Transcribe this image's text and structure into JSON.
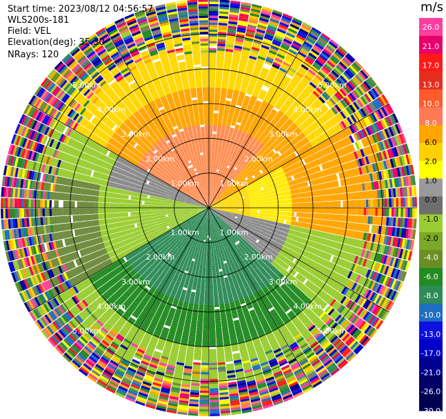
{
  "header": {
    "start_time": "Start time: 2023/08/12 04:56:57",
    "instrument": "WLS200s-181",
    "field": "Field: VEL",
    "elevation": "Elevation(deg): 35.30",
    "nrays": "NRays: 120"
  },
  "range_rings": {
    "labels": [
      "1.00km",
      "2.00km",
      "3.00km",
      "4.00km",
      "5.00km"
    ],
    "ranges_km": [
      1,
      2,
      3,
      4,
      5
    ],
    "max_range_km": 6.0
  },
  "colorbar": {
    "unit": "m/s",
    "tick_labels": [
      "26.0",
      "21.0",
      "17.0",
      "13.0",
      "10.0",
      "8.0",
      "6.0",
      "2.0",
      "1.0",
      "0.0",
      "-1.0",
      "-2.0",
      "-4.0",
      "-6.0",
      "-8.0",
      "-10.0",
      "-13.0",
      "-17.0",
      "-21.0",
      "-26.0",
      "-30.0"
    ],
    "colors": [
      "#ff3fa0",
      "#e8006a",
      "#ff1a1a",
      "#e62e1e",
      "#ff5a2a",
      "#ff7a55",
      "#ffa500",
      "#ffd000",
      "#ffff00",
      "#9a9a9a",
      "#6e6e6e",
      "#9acd32",
      "#7aa828",
      "#6b8e23",
      "#228b22",
      "#2e8b57",
      "#1e6fc0",
      "#1010e0",
      "#0000c8",
      "#000090",
      "#000066",
      "#000050"
    ],
    "highlight_colors": [
      "#ff3fa0",
      "#e8006a",
      "#ff1a1a",
      "#ff5a2a",
      "#ffa500",
      "#ffff00",
      "#9a9a9a",
      "#9acd32",
      "#228b22",
      "#0000c8"
    ]
  }
}
